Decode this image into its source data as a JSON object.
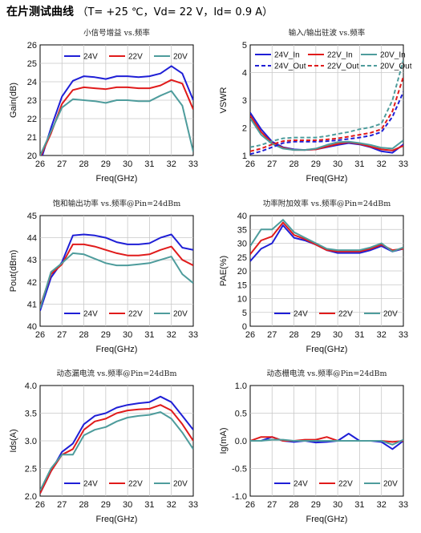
{
  "header": {
    "title": "在片测试曲线",
    "conditions": "（T= +25 ℃，Vd= 22 V，Id= 0.9 A）"
  },
  "colors": {
    "24V": "#1f1fd6",
    "22V": "#e01b1b",
    "20V": "#4e9c9c"
  },
  "chart_data": [
    {
      "type": "line",
      "title": "小信号增益 vs.频率",
      "xlabel": "Freq(GHz)",
      "ylabel": "Gain(dB)",
      "xlim": [
        26,
        33
      ],
      "ylim": [
        20,
        26
      ],
      "xticks": [
        "26",
        "27",
        "28",
        "29",
        "30",
        "31",
        "32",
        "33"
      ],
      "yticks": [
        "20",
        "21",
        "22",
        "23",
        "24",
        "25",
        "26"
      ],
      "grid": true,
      "legend": "top-center",
      "series": [
        {
          "name": "24V",
          "x": [
            26,
            26.5,
            27,
            27.5,
            28,
            28.5,
            29,
            29.5,
            30,
            30.5,
            31,
            31.5,
            32,
            32.5,
            33
          ],
          "y": [
            19.6,
            21.5,
            23.2,
            24.05,
            24.3,
            24.25,
            24.15,
            24.3,
            24.3,
            24.25,
            24.3,
            24.45,
            24.85,
            24.45,
            23.0
          ]
        },
        {
          "name": "22V",
          "x": [
            26,
            26.5,
            27,
            27.5,
            28,
            28.5,
            29,
            29.5,
            30,
            30.5,
            31,
            31.5,
            32,
            32.5,
            33
          ],
          "y": [
            19.9,
            21.2,
            22.8,
            23.55,
            23.7,
            23.65,
            23.6,
            23.7,
            23.7,
            23.65,
            23.65,
            23.8,
            24.1,
            23.9,
            22.5
          ]
        },
        {
          "name": "20V",
          "x": [
            26,
            26.5,
            27,
            27.5,
            28,
            28.5,
            29,
            29.5,
            30,
            30.5,
            31,
            31.5,
            32,
            32.5,
            33
          ],
          "y": [
            20.0,
            21.3,
            22.6,
            23.05,
            23.0,
            22.95,
            22.85,
            23.0,
            23.0,
            22.95,
            22.95,
            23.25,
            23.5,
            22.7,
            20.2
          ]
        }
      ]
    },
    {
      "type": "line",
      "title": "输入/输出驻波 vs.频率",
      "xlabel": "Freq(GHz)",
      "ylabel": "VSWR",
      "xlim": [
        26,
        33
      ],
      "ylim": [
        1,
        5
      ],
      "xticks": [
        "26",
        "27",
        "28",
        "29",
        "30",
        "31",
        "32",
        "33"
      ],
      "yticks": [
        "1",
        "2",
        "3",
        "4",
        "5"
      ],
      "grid": true,
      "legend": "top",
      "series": [
        {
          "name": "24V_In",
          "style": "solid",
          "color": "24V",
          "x": [
            26,
            26.5,
            27,
            27.5,
            28,
            28.5,
            29,
            29.5,
            30,
            30.5,
            31,
            31.5,
            32,
            32.5,
            33
          ],
          "y": [
            2.55,
            1.95,
            1.5,
            1.3,
            1.22,
            1.2,
            1.22,
            1.3,
            1.38,
            1.45,
            1.4,
            1.3,
            1.15,
            1.1,
            1.4
          ]
        },
        {
          "name": "22V_In",
          "style": "solid",
          "color": "22V",
          "x": [
            26,
            26.5,
            27,
            27.5,
            28,
            28.5,
            29,
            29.5,
            30,
            30.5,
            31,
            31.5,
            32,
            32.5,
            33
          ],
          "y": [
            2.45,
            1.85,
            1.45,
            1.28,
            1.2,
            1.2,
            1.22,
            1.32,
            1.42,
            1.48,
            1.42,
            1.32,
            1.22,
            1.18,
            1.35
          ]
        },
        {
          "name": "20V_In",
          "style": "solid",
          "color": "20V",
          "x": [
            26,
            26.5,
            27,
            27.5,
            28,
            28.5,
            29,
            29.5,
            30,
            30.5,
            31,
            31.5,
            32,
            32.5,
            33
          ],
          "y": [
            2.35,
            1.75,
            1.42,
            1.25,
            1.2,
            1.2,
            1.25,
            1.38,
            1.48,
            1.5,
            1.45,
            1.38,
            1.28,
            1.25,
            1.55
          ]
        },
        {
          "name": "24V_Out",
          "style": "dashed",
          "color": "24V",
          "x": [
            26,
            26.5,
            27,
            27.5,
            28,
            28.5,
            29,
            29.5,
            30,
            30.5,
            31,
            31.5,
            32,
            32.5,
            33
          ],
          "y": [
            1.05,
            1.15,
            1.3,
            1.45,
            1.5,
            1.5,
            1.5,
            1.52,
            1.55,
            1.6,
            1.65,
            1.72,
            1.85,
            2.4,
            3.3
          ]
        },
        {
          "name": "22V_Out",
          "style": "dashed",
          "color": "22V",
          "x": [
            26,
            26.5,
            27,
            27.5,
            28,
            28.5,
            29,
            29.5,
            30,
            30.5,
            31,
            31.5,
            32,
            32.5,
            33
          ],
          "y": [
            1.15,
            1.25,
            1.4,
            1.52,
            1.55,
            1.55,
            1.55,
            1.58,
            1.62,
            1.68,
            1.75,
            1.82,
            1.95,
            2.6,
            3.85
          ]
        },
        {
          "name": "20V_Out",
          "style": "dashed",
          "color": "20V",
          "x": [
            26,
            26.5,
            27,
            27.5,
            28,
            28.5,
            29,
            29.5,
            30,
            30.5,
            31,
            31.5,
            32,
            32.5,
            33
          ],
          "y": [
            1.3,
            1.38,
            1.52,
            1.62,
            1.65,
            1.65,
            1.65,
            1.7,
            1.78,
            1.85,
            1.95,
            2.02,
            2.15,
            3.0,
            4.45
          ]
        }
      ]
    },
    {
      "type": "line",
      "title": "饱和输出功率 vs.频率@Pin=24dBm",
      "xlabel": "Freq(GHz)",
      "ylabel": "Pout(dBm)",
      "xlim": [
        26,
        33
      ],
      "ylim": [
        40,
        45
      ],
      "xticks": [
        "26",
        "27",
        "28",
        "29",
        "30",
        "31",
        "32",
        "33"
      ],
      "yticks": [
        "40",
        "41",
        "42",
        "43",
        "44",
        "45"
      ],
      "grid": true,
      "legend": "bottom-center",
      "series": [
        {
          "name": "24V",
          "x": [
            26,
            26.5,
            27,
            27.5,
            28,
            28.5,
            29,
            29.5,
            30,
            30.5,
            31,
            31.5,
            32,
            32.5,
            33
          ],
          "y": [
            40.7,
            42.2,
            42.9,
            44.1,
            44.15,
            44.1,
            44.0,
            43.8,
            43.7,
            43.7,
            43.75,
            44.0,
            44.15,
            43.55,
            43.45
          ]
        },
        {
          "name": "22V",
          "x": [
            26,
            26.5,
            27,
            27.5,
            28,
            28.5,
            29,
            29.5,
            30,
            30.5,
            31,
            31.5,
            32,
            32.5,
            33
          ],
          "y": [
            40.9,
            42.35,
            42.8,
            43.7,
            43.7,
            43.6,
            43.45,
            43.3,
            43.2,
            43.2,
            43.25,
            43.45,
            43.6,
            43.0,
            42.75
          ]
        },
        {
          "name": "20V",
          "x": [
            26,
            26.5,
            27,
            27.5,
            28,
            28.5,
            29,
            29.5,
            30,
            30.5,
            31,
            31.5,
            32,
            32.5,
            33
          ],
          "y": [
            40.8,
            42.45,
            42.85,
            43.3,
            43.25,
            43.05,
            42.85,
            42.75,
            42.75,
            42.8,
            42.85,
            43.0,
            43.15,
            42.35,
            41.95
          ]
        }
      ]
    },
    {
      "type": "line",
      "title": "功率附加效率 vs.频率@Pin=24dBm",
      "xlabel": "Freq(GHz)",
      "ylabel": "PAE(%)",
      "xlim": [
        26,
        33
      ],
      "ylim": [
        0,
        40
      ],
      "xticks": [
        "26",
        "27",
        "28",
        "29",
        "30",
        "31",
        "32",
        "33"
      ],
      "yticks": [
        "0",
        "5",
        "10",
        "15",
        "20",
        "25",
        "30",
        "35",
        "40"
      ],
      "grid": true,
      "legend": "bottom-center",
      "series": [
        {
          "name": "24V",
          "x": [
            26,
            26.5,
            27,
            27.5,
            28,
            28.5,
            29,
            29.5,
            30,
            30.5,
            31,
            31.5,
            32,
            32.5,
            33
          ],
          "y": [
            23.5,
            28,
            30,
            36.5,
            32,
            31,
            29.5,
            27.5,
            26.5,
            26.5,
            26.5,
            27.5,
            29,
            27,
            28
          ]
        },
        {
          "name": "22V",
          "x": [
            26,
            26.5,
            27,
            27.5,
            28,
            28.5,
            29,
            29.5,
            30,
            30.5,
            31,
            31.5,
            32,
            32.5,
            33
          ],
          "y": [
            26,
            31,
            32.5,
            37.5,
            33,
            31.5,
            29.5,
            27.5,
            27,
            27,
            27,
            28,
            29.5,
            27.5,
            28
          ]
        },
        {
          "name": "20V",
          "x": [
            26,
            26.5,
            27,
            27.5,
            28,
            28.5,
            29,
            29.5,
            30,
            30.5,
            31,
            31.5,
            32,
            32.5,
            33
          ],
          "y": [
            29,
            35,
            35,
            38.5,
            34,
            32,
            30,
            28,
            27.5,
            27.5,
            27.5,
            28.5,
            30,
            27,
            28.5
          ]
        }
      ]
    },
    {
      "type": "line",
      "title": "动态漏电流 vs.频率@Pin=24dBm",
      "xlabel": "Freq(GHz)",
      "ylabel": "Ids(A)",
      "xlim": [
        26,
        33
      ],
      "ylim": [
        2.0,
        4.0
      ],
      "xticks": [
        "26",
        "27",
        "28",
        "29",
        "30",
        "31",
        "32",
        "33"
      ],
      "yticks": [
        "2.0",
        "2.5",
        "3.0",
        "3.5",
        "4.0"
      ],
      "grid": true,
      "legend": "bottom-center",
      "series": [
        {
          "name": "24V",
          "x": [
            26,
            26.5,
            27,
            27.5,
            28,
            28.5,
            29,
            29.5,
            30,
            30.5,
            31,
            31.5,
            32,
            32.5,
            33
          ],
          "y": [
            2.05,
            2.45,
            2.8,
            2.95,
            3.3,
            3.45,
            3.5,
            3.6,
            3.65,
            3.68,
            3.7,
            3.8,
            3.7,
            3.45,
            3.2
          ]
        },
        {
          "name": "22V",
          "x": [
            26,
            26.5,
            27,
            27.5,
            28,
            28.5,
            29,
            29.5,
            30,
            30.5,
            31,
            31.5,
            32,
            32.5,
            33
          ],
          "y": [
            2.05,
            2.45,
            2.75,
            2.85,
            3.2,
            3.35,
            3.4,
            3.5,
            3.55,
            3.57,
            3.58,
            3.65,
            3.55,
            3.3,
            3.0
          ]
        },
        {
          "name": "20V",
          "x": [
            26,
            26.5,
            27,
            27.5,
            28,
            28.5,
            29,
            29.5,
            30,
            30.5,
            31,
            31.5,
            32,
            32.5,
            33
          ],
          "y": [
            2.1,
            2.5,
            2.75,
            2.75,
            3.1,
            3.2,
            3.25,
            3.35,
            3.42,
            3.45,
            3.47,
            3.52,
            3.4,
            3.15,
            2.85
          ]
        }
      ]
    },
    {
      "type": "line",
      "title": "动态栅电流 vs.频率@Pin=24dBm",
      "xlabel": "Freq(GHz)",
      "ylabel": "Ig(mA)",
      "xlim": [
        26,
        33
      ],
      "ylim": [
        -1.0,
        1.0
      ],
      "xticks": [
        "26",
        "27",
        "28",
        "29",
        "30",
        "31",
        "32",
        "33"
      ],
      "yticks": [
        "-1.0",
        "-0.5",
        "0.0",
        "0.5",
        "1.0"
      ],
      "grid": true,
      "legend": "bottom-center",
      "series": [
        {
          "name": "24V",
          "x": [
            26,
            26.5,
            27,
            27.5,
            28,
            28.5,
            29,
            29.5,
            30,
            30.5,
            31,
            31.5,
            32,
            32.5,
            33
          ],
          "y": [
            0.0,
            0.0,
            0.07,
            0.0,
            -0.02,
            0.0,
            -0.03,
            -0.02,
            0.0,
            0.13,
            0.0,
            0.0,
            -0.02,
            -0.15,
            0.0
          ]
        },
        {
          "name": "22V",
          "x": [
            26,
            26.5,
            27,
            27.5,
            28,
            28.5,
            29,
            29.5,
            30,
            30.5,
            31,
            31.5,
            32,
            32.5,
            33
          ],
          "y": [
            0.0,
            0.07,
            0.07,
            0.0,
            0.0,
            0.02,
            0.02,
            0.07,
            0.0,
            0.0,
            0.0,
            0.0,
            0.0,
            -0.02,
            0.0
          ]
        },
        {
          "name": "20V",
          "x": [
            26,
            26.5,
            27,
            27.5,
            28,
            28.5,
            29,
            29.5,
            30,
            30.5,
            31,
            31.5,
            32,
            32.5,
            33
          ],
          "y": [
            0.0,
            0.0,
            0.02,
            0.02,
            0.0,
            0.0,
            0.0,
            0.0,
            0.0,
            0.0,
            0.0,
            0.0,
            0.0,
            -0.07,
            0.02
          ]
        }
      ]
    }
  ]
}
